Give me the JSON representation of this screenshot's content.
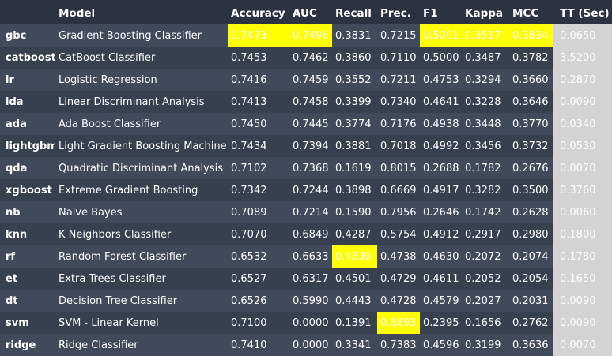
{
  "columns": [
    "",
    "Model",
    "Accuracy",
    "AUC",
    "Recall",
    "Prec.",
    "F1",
    "Kappa",
    "MCC",
    "TT (Sec)"
  ],
  "highlight_color": "#ffff00",
  "tt_color": "#d3d3d3",
  "rows": [
    {
      "id": "gbc",
      "model": "Gradient Boosting Classifier",
      "accuracy": "0.7473",
      "auc": "0.7496",
      "recall": "0.3831",
      "prec": "0.7215",
      "f1": "0.5001",
      "kappa": "0.3517",
      "mcc": "0.3834",
      "tt": "0.0650",
      "highlight": [
        "accuracy",
        "auc",
        "f1",
        "kappa",
        "mcc"
      ]
    },
    {
      "id": "catboost",
      "model": "CatBoost Classifier",
      "accuracy": "0.7453",
      "auc": "0.7462",
      "recall": "0.3860",
      "prec": "0.7110",
      "f1": "0.5000",
      "kappa": "0.3487",
      "mcc": "0.3782",
      "tt": "3.5200",
      "highlight": []
    },
    {
      "id": "lr",
      "model": "Logistic Regression",
      "accuracy": "0.7416",
      "auc": "0.7459",
      "recall": "0.3552",
      "prec": "0.7211",
      "f1": "0.4753",
      "kappa": "0.3294",
      "mcc": "0.3660",
      "tt": "0.2870",
      "highlight": []
    },
    {
      "id": "lda",
      "model": "Linear Discriminant Analysis",
      "accuracy": "0.7413",
      "auc": "0.7458",
      "recall": "0.3399",
      "prec": "0.7340",
      "f1": "0.4641",
      "kappa": "0.3228",
      "mcc": "0.3646",
      "tt": "0.0090",
      "highlight": []
    },
    {
      "id": "ada",
      "model": "Ada Boost Classifier",
      "accuracy": "0.7450",
      "auc": "0.7445",
      "recall": "0.3774",
      "prec": "0.7176",
      "f1": "0.4938",
      "kappa": "0.3448",
      "mcc": "0.3770",
      "tt": "0.0340",
      "highlight": []
    },
    {
      "id": "lightgbm",
      "model": "Light Gradient Boosting Machine",
      "accuracy": "0.7434",
      "auc": "0.7394",
      "recall": "0.3881",
      "prec": "0.7018",
      "f1": "0.4992",
      "kappa": "0.3456",
      "mcc": "0.3732",
      "tt": "0.0530",
      "highlight": []
    },
    {
      "id": "qda",
      "model": "Quadratic Discriminant Analysis",
      "accuracy": "0.7102",
      "auc": "0.7368",
      "recall": "0.1619",
      "prec": "0.8015",
      "f1": "0.2688",
      "kappa": "0.1782",
      "mcc": "0.2676",
      "tt": "0.0070",
      "highlight": []
    },
    {
      "id": "xgboost",
      "model": "Extreme Gradient Boosting",
      "accuracy": "0.7342",
      "auc": "0.7244",
      "recall": "0.3898",
      "prec": "0.6669",
      "f1": "0.4917",
      "kappa": "0.3282",
      "mcc": "0.3500",
      "tt": "0.3760",
      "highlight": []
    },
    {
      "id": "nb",
      "model": "Naive Bayes",
      "accuracy": "0.7089",
      "auc": "0.7214",
      "recall": "0.1590",
      "prec": "0.7956",
      "f1": "0.2646",
      "kappa": "0.1742",
      "mcc": "0.2628",
      "tt": "0.0060",
      "highlight": []
    },
    {
      "id": "knn",
      "model": "K Neighbors Classifier",
      "accuracy": "0.7070",
      "auc": "0.6849",
      "recall": "0.4287",
      "prec": "0.5754",
      "f1": "0.4912",
      "kappa": "0.2917",
      "mcc": "0.2980",
      "tt": "0.1800",
      "highlight": []
    },
    {
      "id": "rf",
      "model": "Random Forest Classifier",
      "accuracy": "0.6532",
      "auc": "0.6633",
      "recall": "0.4830",
      "prec": "0.4738",
      "f1": "0.4630",
      "kappa": "0.2072",
      "mcc": "0.2074",
      "tt": "0.1780",
      "highlight": [
        "recall"
      ]
    },
    {
      "id": "et",
      "model": "Extra Trees Classifier",
      "accuracy": "0.6527",
      "auc": "0.6317",
      "recall": "0.4501",
      "prec": "0.4729",
      "f1": "0.4611",
      "kappa": "0.2052",
      "mcc": "0.2054",
      "tt": "0.1650",
      "highlight": []
    },
    {
      "id": "dt",
      "model": "Decision Tree Classifier",
      "accuracy": "0.6526",
      "auc": "0.5990",
      "recall": "0.4443",
      "prec": "0.4728",
      "f1": "0.4579",
      "kappa": "0.2027",
      "mcc": "0.2031",
      "tt": "0.0090",
      "highlight": []
    },
    {
      "id": "svm",
      "model": "SVM - Linear Kernel",
      "accuracy": "0.7100",
      "auc": "0.0000",
      "recall": "0.1391",
      "prec": "0.8893",
      "f1": "0.2395",
      "kappa": "0.1656",
      "mcc": "0.2762",
      "tt": "0.0090",
      "highlight": [
        "prec"
      ]
    },
    {
      "id": "ridge",
      "model": "Ridge Classifier",
      "accuracy": "0.7410",
      "auc": "0.0000",
      "recall": "0.3341",
      "prec": "0.7383",
      "f1": "0.4596",
      "kappa": "0.3199",
      "mcc": "0.3636",
      "tt": "0.0070",
      "highlight": []
    }
  ]
}
